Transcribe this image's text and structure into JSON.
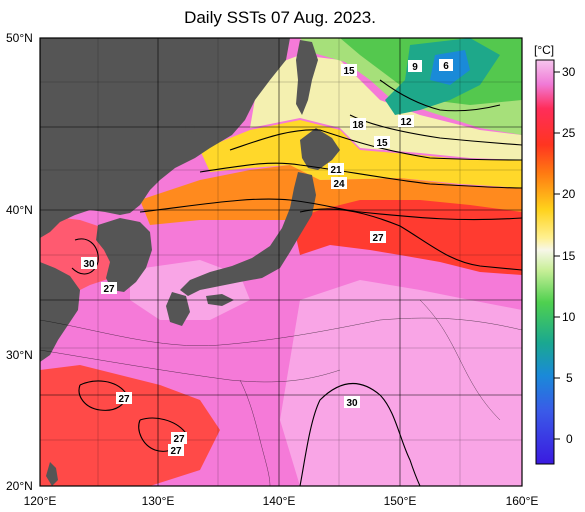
{
  "map": {
    "title": "Daily SSTs 07 Aug. 2023.",
    "lat_labels": [
      "50°N",
      "40°N",
      "30°N",
      "20°N"
    ],
    "lon_labels": [
      "120°E",
      "130°E",
      "140°E",
      "150°E",
      "160°E"
    ],
    "contour_labels": [
      "15",
      "9",
      "6",
      "18",
      "12",
      "15",
      "21",
      "24",
      "27",
      "30",
      "27",
      "27",
      "30",
      "27",
      "27"
    ]
  },
  "colorbar": {
    "unit": "[°C]",
    "ticks": [
      "30",
      "25",
      "20",
      "15",
      "10",
      "5",
      "0"
    ],
    "min": -2,
    "max": 32
  },
  "colors": {
    "land": "#555555",
    "hot": "#f57ad8",
    "warm": "#ff3b30",
    "orange": "#ff8a1e",
    "yellow": "#ffd82a",
    "cold": "#3bb850"
  }
}
